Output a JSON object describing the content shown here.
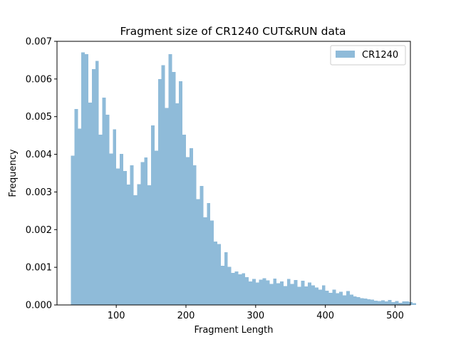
{
  "chart_data": {
    "type": "bar",
    "title": "Fragment size of CR1240 CUT&RUN data",
    "xlabel": "Fragment Length",
    "ylabel": "Frequency",
    "xlim": [
      15,
      522
    ],
    "ylim": [
      0,
      0.007
    ],
    "xticks": [
      100,
      200,
      300,
      400,
      500
    ],
    "yticks": [
      0.0,
      0.001,
      0.002,
      0.003,
      0.004,
      0.005,
      0.006,
      0.007
    ],
    "ytick_labels": [
      "0.000",
      "0.001",
      "0.002",
      "0.003",
      "0.004",
      "0.005",
      "0.006",
      "0.007"
    ],
    "legend_position": "top-right",
    "grid": false,
    "series": [
      {
        "name": "CR1240",
        "color": "#1f77b4",
        "opacity": 0.5,
        "bin_start": 35,
        "bin_width": 5,
        "values": [
          0.00396,
          0.0052,
          0.00468,
          0.00671,
          0.00666,
          0.00537,
          0.00626,
          0.00648,
          0.00452,
          0.00551,
          0.00505,
          0.00402,
          0.00466,
          0.00362,
          0.00401,
          0.00356,
          0.0032,
          0.00371,
          0.00291,
          0.00321,
          0.00379,
          0.00392,
          0.00318,
          0.00477,
          0.0041,
          0.006,
          0.00637,
          0.00523,
          0.00666,
          0.00619,
          0.00535,
          0.00594,
          0.00452,
          0.00393,
          0.00416,
          0.00371,
          0.00281,
          0.00316,
          0.00233,
          0.00271,
          0.00224,
          0.00168,
          0.00162,
          0.00104,
          0.0014,
          0.00101,
          0.00085,
          0.00089,
          0.00081,
          0.00084,
          0.00074,
          0.00062,
          0.00069,
          0.0006,
          0.00067,
          0.00071,
          0.00065,
          0.00056,
          0.0007,
          0.00058,
          0.00062,
          0.0005,
          0.00069,
          0.00056,
          0.00066,
          0.00048,
          0.00064,
          0.00049,
          0.0006,
          0.00052,
          0.00046,
          0.00041,
          0.00052,
          0.00038,
          0.00032,
          0.00041,
          0.00031,
          0.00035,
          0.00026,
          0.00037,
          0.00027,
          0.00023,
          0.00021,
          0.00018,
          0.00017,
          0.00015,
          0.00014,
          0.00011,
          0.0001,
          0.00012,
          9e-05,
          0.00013,
          8e-05,
          0.0001,
          6e-05,
          9e-05,
          9e-05,
          8e-05,
          5e-05
        ]
      }
    ]
  }
}
